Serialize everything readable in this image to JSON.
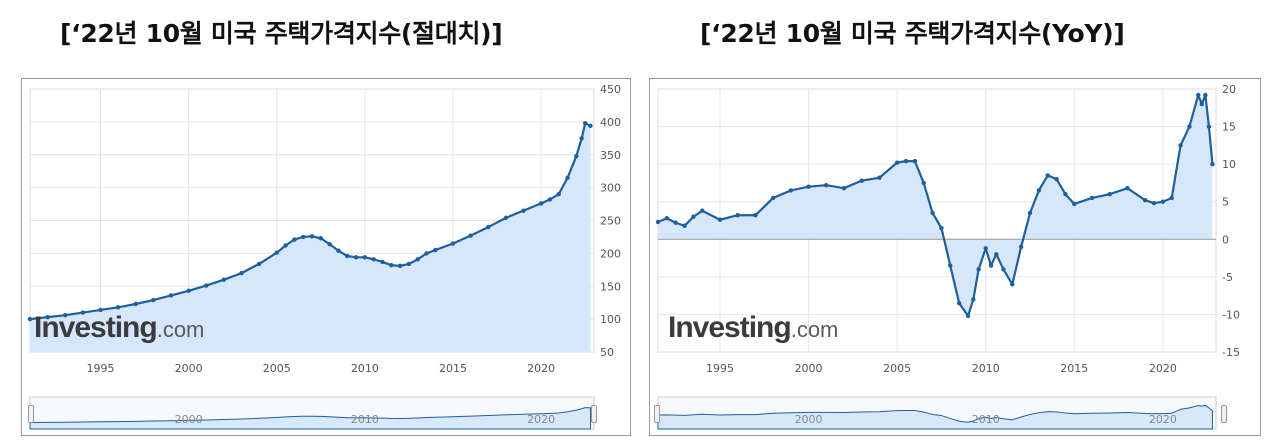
{
  "titles": {
    "left": "[‘22년 10월 미국 주택가격지수(절대치)]",
    "right": "[‘22년 10월 미국 주택가격지수(YoY)]"
  },
  "logo": {
    "main": "Investing",
    "suffix": ".com"
  },
  "colors": {
    "line": "#1f5f9c",
    "fill": "#d6e7fb",
    "grid": "#e6e6e6",
    "zero": "#9a9a9a",
    "navigator_fill": "#d9e8f8"
  },
  "chart_data": [
    {
      "type": "area",
      "xlim": [
        1991.0,
        2023.0
      ],
      "ylim": [
        50,
        450
      ],
      "y_ticks": [
        50,
        100,
        150,
        200,
        250,
        300,
        350,
        400,
        450
      ],
      "x_ticks": [
        1995,
        2000,
        2005,
        2010,
        2015,
        2020
      ],
      "navigator_ticks": [
        2000,
        2010,
        2020
      ],
      "grid": true,
      "y_axis_side": "right",
      "series": [
        {
          "x": [
            1991.0,
            1992.0,
            1993.0,
            1994.0,
            1995.0,
            1996.0,
            1997.0,
            1998.0,
            1999.0,
            2000.0,
            2001.0,
            2002.0,
            2003.0,
            2004.0,
            2005.0,
            2005.5,
            2006.0,
            2006.5,
            2007.0,
            2007.5,
            2008.0,
            2008.5,
            2009.0,
            2009.5,
            2010.0,
            2010.5,
            2011.0,
            2011.5,
            2012.0,
            2012.5,
            2013.0,
            2013.5,
            2014.0,
            2015.0,
            2016.0,
            2017.0,
            2018.0,
            2019.0,
            2020.0,
            2020.5,
            2021.0,
            2021.5,
            2022.0,
            2022.3,
            2022.5,
            2022.8
          ],
          "y": [
            100,
            103,
            106,
            110,
            114,
            118,
            123,
            129,
            136,
            143,
            151,
            160,
            170,
            184,
            201,
            212,
            221,
            225,
            226,
            223,
            214,
            204,
            196,
            194,
            194,
            191,
            187,
            182,
            181,
            184,
            191,
            200,
            205,
            215,
            227,
            240,
            254,
            265,
            276,
            282,
            290,
            315,
            348,
            375,
            398,
            394
          ]
        }
      ]
    },
    {
      "type": "area",
      "xlim": [
        1991.5,
        2023.0
      ],
      "ylim": [
        -15,
        20
      ],
      "y_ticks": [
        -15,
        -10,
        -5,
        0,
        5,
        10,
        15,
        20
      ],
      "x_ticks": [
        1995,
        2000,
        2005,
        2010,
        2015,
        2020
      ],
      "navigator_ticks": [
        2000,
        2010,
        2020
      ],
      "grid": true,
      "y_axis_side": "right",
      "series": [
        {
          "x": [
            1991.5,
            1992.0,
            1992.5,
            1993.0,
            1993.5,
            1994.0,
            1995.0,
            1996.0,
            1997.0,
            1998.0,
            1999.0,
            2000.0,
            2001.0,
            2002.0,
            2003.0,
            2004.0,
            2005.0,
            2005.5,
            2006.0,
            2006.5,
            2007.0,
            2007.5,
            2008.0,
            2008.5,
            2009.0,
            2009.3,
            2009.6,
            2010.0,
            2010.3,
            2010.6,
            2011.0,
            2011.5,
            2012.0,
            2012.5,
            2013.0,
            2013.5,
            2014.0,
            2014.5,
            2015.0,
            2016.0,
            2017.0,
            2018.0,
            2019.0,
            2019.5,
            2020.0,
            2020.5,
            2021.0,
            2021.5,
            2022.0,
            2022.2,
            2022.4,
            2022.6,
            2022.8
          ],
          "y": [
            2.3,
            2.8,
            2.2,
            1.8,
            3.0,
            3.8,
            2.6,
            3.2,
            3.2,
            5.5,
            6.5,
            7.0,
            7.2,
            6.8,
            7.8,
            8.2,
            10.2,
            10.4,
            10.4,
            7.5,
            3.5,
            1.5,
            -3.5,
            -8.5,
            -10.2,
            -8.0,
            -4.0,
            -1.2,
            -3.5,
            -2.0,
            -4.0,
            -6.0,
            -1.0,
            3.5,
            6.5,
            8.5,
            8.0,
            6.0,
            4.7,
            5.5,
            6.0,
            6.8,
            5.2,
            4.8,
            5.0,
            5.5,
            12.5,
            15.0,
            19.2,
            18.0,
            19.2,
            15.0,
            10.0
          ]
        }
      ]
    }
  ]
}
